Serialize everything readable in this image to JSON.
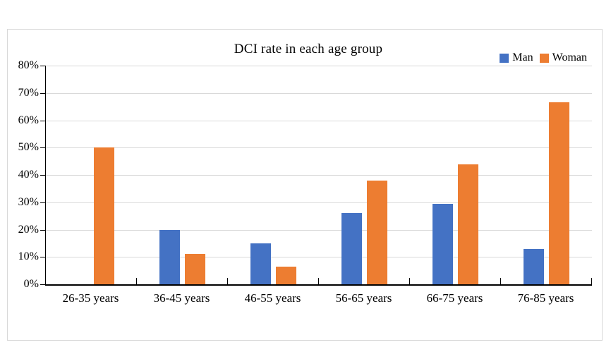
{
  "chart_data": {
    "type": "bar",
    "title": "DCI rate in each age group",
    "categories": [
      "26-35 years",
      "36-45 years",
      "46-55 years",
      "56-65 years",
      "66-75 years",
      "76-85 years"
    ],
    "series": [
      {
        "name": "Man",
        "color": "#4472C4",
        "values": [
          0,
          20,
          15,
          26,
          29.5,
          13
        ]
      },
      {
        "name": "Woman",
        "color": "#ED7D31",
        "values": [
          50,
          11,
          6.5,
          38,
          44,
          66.7
        ]
      }
    ],
    "xlabel": "",
    "ylabel": "",
    "ylim": [
      0,
      80
    ],
    "ytick_step": 10,
    "ytick_labels": [
      "0%",
      "10%",
      "20%",
      "30%",
      "40%",
      "50%",
      "60%",
      "70%",
      "80%"
    ],
    "grid": "horizontal",
    "legend_position": "top-right",
    "unit": "percent"
  },
  "colors": {
    "man": "#4472C4",
    "woman": "#ED7D31",
    "gridline": "#D9D9D9",
    "axis": "#000000",
    "frame_border": "#D9D9D9",
    "background": "#FFFFFF"
  }
}
